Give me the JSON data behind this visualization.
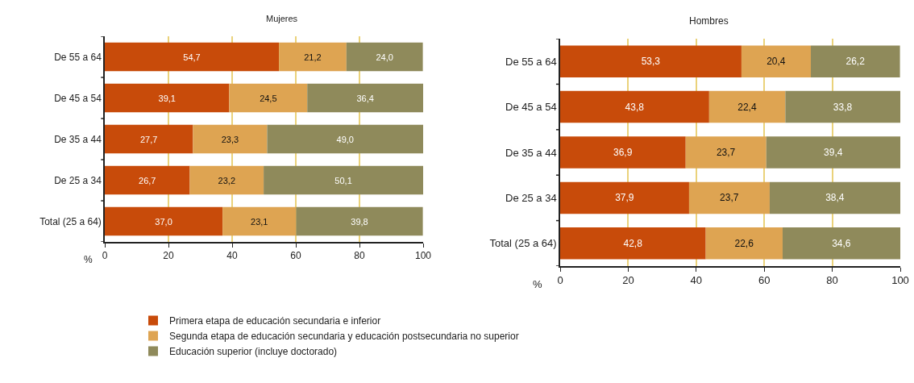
{
  "chart_data": [
    {
      "type": "bar",
      "title": "Mujeres",
      "orientation": "horizontal",
      "stacked": true,
      "categories": [
        "De 55 a 64",
        "De 45 a 54",
        "De 35 a 44",
        "De 25 a 34",
        "Total (25 a 64)"
      ],
      "xlabel": "%",
      "xlim": [
        0,
        100
      ],
      "xticks": [
        0,
        20,
        40,
        60,
        80,
        100
      ],
      "grid": "x",
      "legend": "bottom",
      "series": [
        {
          "name": "Primera etapa de educación secundaria e inferior",
          "color": "#c84b0a",
          "values": [
            54.7,
            39.1,
            27.7,
            26.7,
            37.0
          ],
          "value_labels": [
            "54,7",
            "39,1",
            "27,7",
            "26,7",
            "37,0"
          ]
        },
        {
          "name": "Segunda etapa de educación secundaria y educación postsecundaria no superior",
          "color": "#dea452",
          "values": [
            21.2,
            24.5,
            23.3,
            23.2,
            23.1
          ],
          "value_labels": [
            "21,2",
            "24,5",
            "23,3",
            "23,2",
            "23,1"
          ]
        },
        {
          "name": "Educación superior (incluye doctorado)",
          "color": "#8f8a5b",
          "values": [
            24.0,
            36.4,
            49.0,
            50.1,
            39.8
          ],
          "value_labels": [
            "24,0",
            "36,4",
            "49,0",
            "50,1",
            "39,8"
          ]
        }
      ]
    },
    {
      "type": "bar",
      "title": "Hombres",
      "orientation": "horizontal",
      "stacked": true,
      "categories": [
        "De 55 a 64",
        "De 45 a 54",
        "De 35 a 44",
        "De 25 a 34",
        "Total (25 a 64)"
      ],
      "xlabel": "%",
      "xlim": [
        0,
        100
      ],
      "xticks": [
        0,
        20,
        40,
        60,
        80,
        100
      ],
      "grid": "x",
      "legend": "bottom",
      "series": [
        {
          "name": "Primera etapa de educación secundaria e inferior",
          "color": "#c84b0a",
          "values": [
            53.3,
            43.8,
            36.9,
            37.9,
            42.8
          ],
          "value_labels": [
            "53,3",
            "43,8",
            "36,9",
            "37,9",
            "42,8"
          ]
        },
        {
          "name": "Segunda etapa de educación secundaria y educación postsecundaria no superior",
          "color": "#dea452",
          "values": [
            20.4,
            22.4,
            23.7,
            23.7,
            22.6
          ],
          "value_labels": [
            "20,4",
            "22,4",
            "23,7",
            "23,7",
            "22,6"
          ]
        },
        {
          "name": "Educación superior (incluye doctorado)",
          "color": "#8f8a5b",
          "values": [
            26.2,
            33.8,
            39.4,
            38.4,
            34.6
          ],
          "value_labels": [
            "26,2",
            "33,8",
            "39,4",
            "38,4",
            "34,6"
          ]
        }
      ]
    }
  ]
}
